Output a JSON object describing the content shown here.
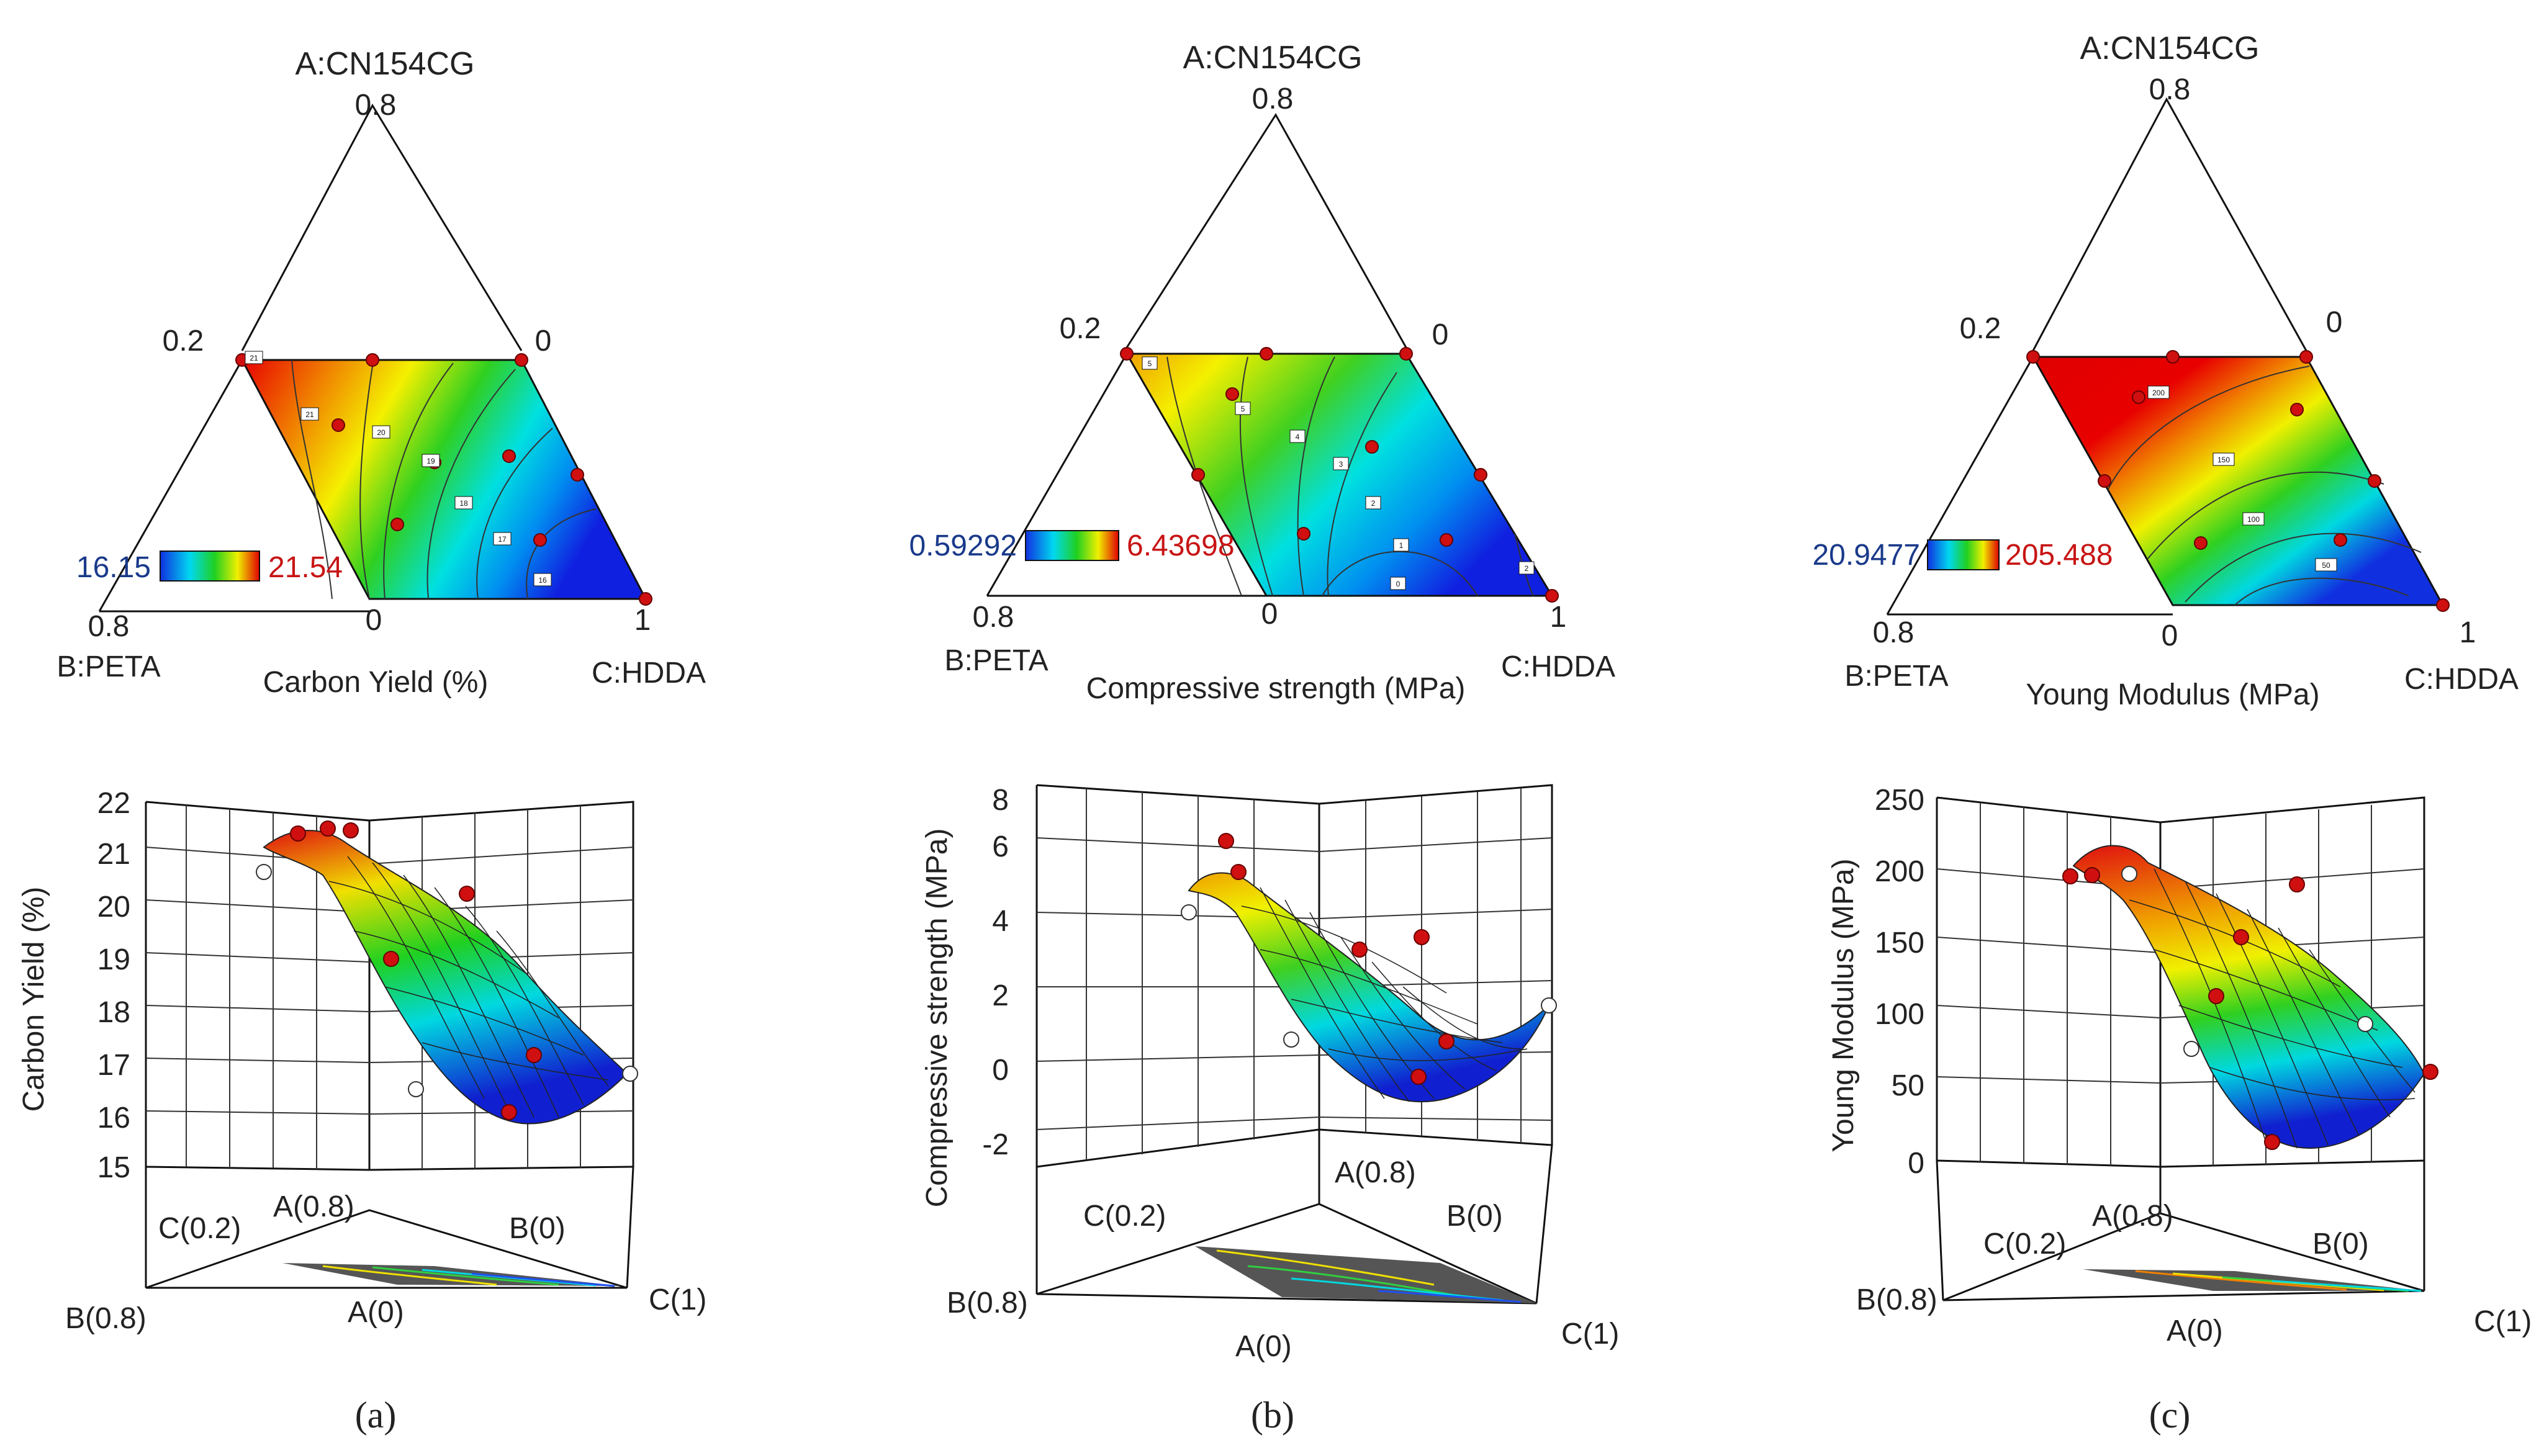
{
  "colors": {
    "low": "#1030e0",
    "midlow": "#00e0f0",
    "mid": "#20d020",
    "midhigh": "#f0f000",
    "high": "#e00000",
    "minLabel": "#1a3a8a",
    "maxLabel": "#c81414",
    "point": "#d01010"
  },
  "panels": [
    {
      "caption": "(a)",
      "ternary": {
        "top_label": "A:CN154CG",
        "top_value": "0.8",
        "left_value": "0.2",
        "right_value": "0",
        "bottom_left": "0.8",
        "bottom_mid": "0",
        "bottom_right": "1",
        "b_label": "B:PETA",
        "c_label": "C:HDDA",
        "response": "Carbon Yield (%)",
        "legend_min": "16.15",
        "legend_max": "21.54",
        "contour_labels": [
          "21",
          "21",
          "20",
          "19",
          "18",
          "17",
          "16"
        ]
      },
      "surface": {
        "y_title": "Carbon Yield (%)",
        "y_ticks": [
          "22",
          "21",
          "20",
          "19",
          "18",
          "17",
          "16",
          "15"
        ],
        "base_labels": [
          "C(0.2)",
          "A(0.8)",
          "B(0)",
          "B(0.8)",
          "A(0)",
          "C(1)"
        ]
      }
    },
    {
      "caption": "(b)",
      "ternary": {
        "top_label": "A:CN154CG",
        "top_value": "0.8",
        "left_value": "0.2",
        "right_value": "0",
        "bottom_left": "0.8",
        "bottom_mid": "0",
        "bottom_right": "1",
        "b_label": "B:PETA",
        "c_label": "C:HDDA",
        "response": "Compressive strength (MPa)",
        "legend_min": "0.59292",
        "legend_max": "6.43698",
        "contour_labels": [
          "5",
          "5",
          "4",
          "3",
          "2",
          "1",
          "0",
          "2"
        ]
      },
      "surface": {
        "y_title": "Compressive strength (MPa)",
        "y_ticks": [
          "8",
          "6",
          "4",
          "2",
          "0",
          "-2"
        ],
        "base_labels": [
          "C(0.2)",
          "A(0.8)",
          "B(0)",
          "B(0.8)",
          "A(0)",
          "C(1)"
        ]
      }
    },
    {
      "caption": "(c)",
      "ternary": {
        "top_label": "A:CN154CG",
        "top_value": "0.8",
        "left_value": "0.2",
        "right_value": "0",
        "bottom_left": "0.8",
        "bottom_mid": "0",
        "bottom_right": "1",
        "b_label": "B:PETA",
        "c_label": "C:HDDA",
        "response": "Young Modulus (MPa)",
        "legend_min": "20.9477",
        "legend_max": "205.488",
        "contour_labels": [
          "200",
          "150",
          "100",
          "50"
        ]
      },
      "surface": {
        "y_title": "Young Modulus (MPa)",
        "y_ticks": [
          "250",
          "200",
          "150",
          "100",
          "50",
          "0"
        ],
        "base_labels": [
          "C(0.2)",
          "A(0.8)",
          "B(0)",
          "B(0.8)",
          "A(0)",
          "C(1)"
        ]
      }
    }
  ]
}
